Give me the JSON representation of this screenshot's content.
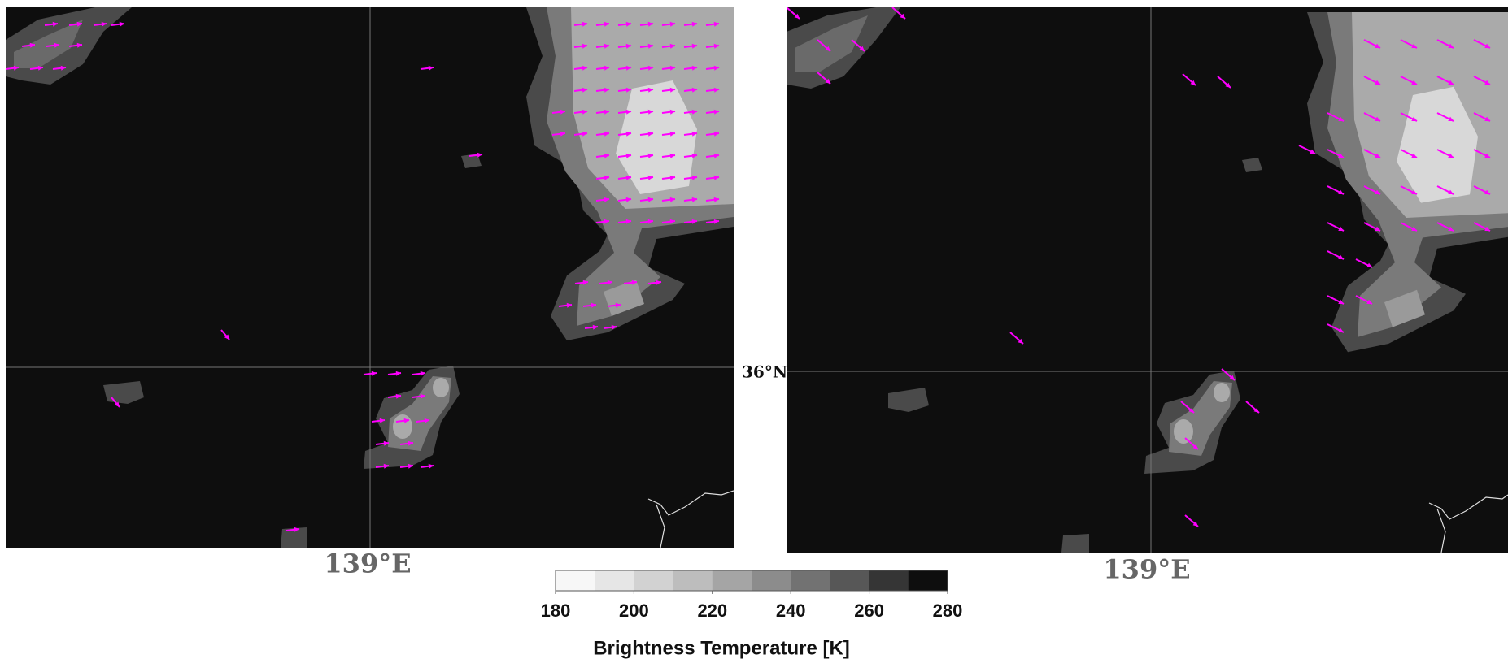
{
  "panels": [
    {
      "lon_label": "139°E",
      "lat_label": "36°N"
    },
    {
      "lon_label": "139°E"
    }
  ],
  "colorbar": {
    "label": "Brightness Temperature [K]",
    "range": [
      180,
      280
    ],
    "ticks": [
      180,
      200,
      220,
      240,
      260,
      280
    ],
    "colors": [
      "#f7f7f7",
      "#e6e6e6",
      "#d2d2d2",
      "#bdbdbd",
      "#a5a5a5",
      "#8c8c8c",
      "#727272",
      "#575757",
      "#353535",
      "#0e0e0e"
    ]
  }
}
